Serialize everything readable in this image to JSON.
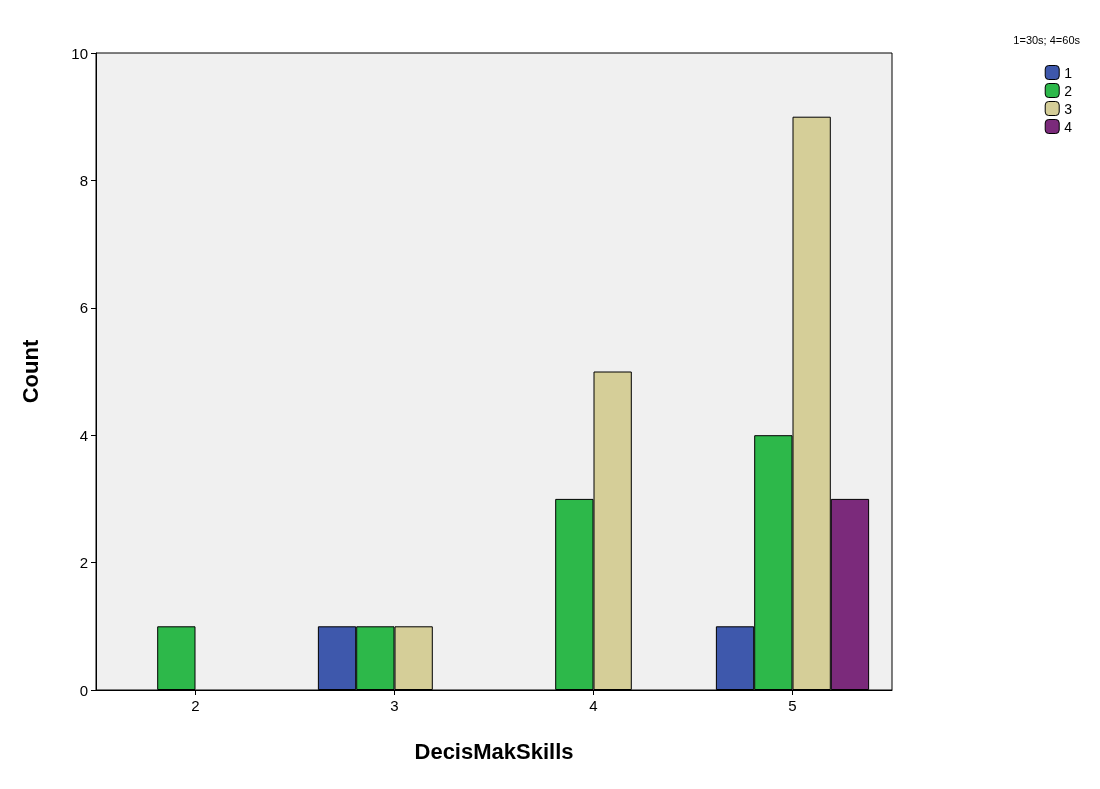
{
  "chart_data": {
    "type": "bar",
    "xlabel": "DecisMakSkills",
    "ylabel": "Count",
    "legend_title": "1=30s; 4=60s",
    "categories": [
      "2",
      "3",
      "4",
      "5"
    ],
    "series": [
      {
        "name": "1",
        "color": "#3e58ac",
        "values": [
          null,
          1,
          null,
          1
        ]
      },
      {
        "name": "2",
        "color": "#2db84a",
        "values": [
          1,
          1,
          3,
          4
        ]
      },
      {
        "name": "3",
        "color": "#d5ce98",
        "values": [
          null,
          1,
          5,
          9
        ]
      },
      {
        "name": "4",
        "color": "#7b2a7b",
        "values": [
          null,
          null,
          null,
          3
        ]
      }
    ],
    "ylim": [
      0,
      10
    ],
    "yticks": [
      0,
      2,
      4,
      6,
      8,
      10
    ],
    "grid": false,
    "legend": "top right"
  }
}
